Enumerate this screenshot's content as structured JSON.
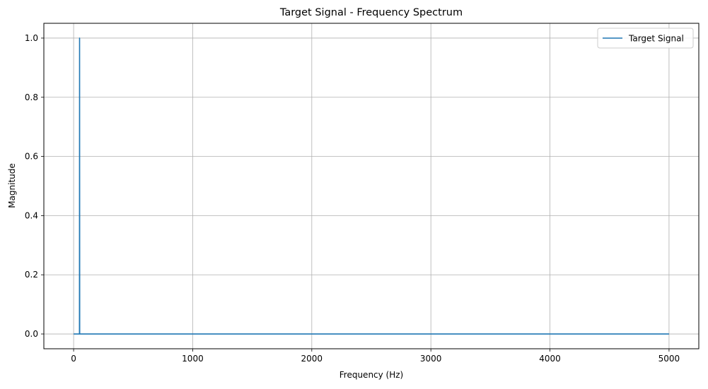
{
  "chart_data": {
    "type": "line",
    "title": "Target Signal - Frequency Spectrum",
    "xlabel": "Frequency (Hz)",
    "ylabel": "Magnitude",
    "xlim": [
      -250,
      5250
    ],
    "ylim": [
      -0.05,
      1.05
    ],
    "xticks": [
      0,
      1000,
      2000,
      3000,
      4000,
      5000
    ],
    "xtick_labels": [
      "0",
      "1000",
      "2000",
      "3000",
      "4000",
      "5000"
    ],
    "yticks": [
      0.0,
      0.2,
      0.4,
      0.6,
      0.8,
      1.0
    ],
    "ytick_labels": [
      "0.0",
      "0.2",
      "0.4",
      "0.6",
      "0.8",
      "1.0"
    ],
    "grid": true,
    "legend_position": "upper right",
    "series": [
      {
        "name": "Target Signal",
        "color": "#1f77b4",
        "x": [
          0,
          48,
          49,
          50,
          51,
          52,
          5000
        ],
        "y": [
          0.0,
          0.0,
          0.0,
          1.0,
          0.0,
          0.0,
          0.0
        ]
      }
    ]
  }
}
